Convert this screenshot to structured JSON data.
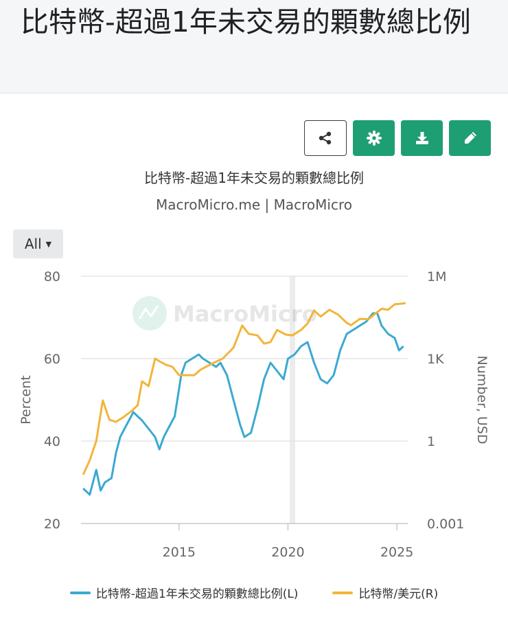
{
  "page": {
    "title": "比特幣-超過1年未交易的顆數總比例"
  },
  "toolbar": {
    "share": "share-icon",
    "settings": "gear-icon",
    "download": "download-icon",
    "edit": "pencil-icon"
  },
  "range": {
    "label": "All"
  },
  "watermark": "MacroMicro",
  "colors": {
    "accent": "#1e9e73",
    "series_left": "#3aa9d1",
    "series_right": "#f2b53a"
  },
  "chart_data": {
    "type": "line",
    "title": "比特幣-超過1年未交易的顆數總比例",
    "subtitle": "MacroMicro.me | MacroMicro",
    "x_ticks": [
      2015,
      2020,
      2025
    ],
    "xlim": [
      2010.5,
      2025.5
    ],
    "y_left": {
      "label": "Percent",
      "lim": [
        20,
        80
      ],
      "ticks": [
        20,
        40,
        60,
        80
      ]
    },
    "y_right": {
      "label": "Number, USD",
      "scale": "log",
      "ticks": [
        {
          "value": 0.001,
          "label": "0.001"
        },
        {
          "value": 1,
          "label": "1"
        },
        {
          "value": 1000,
          "label": "1K"
        },
        {
          "value": 1000000,
          "label": "1M"
        }
      ]
    },
    "series": [
      {
        "name": "比特幣-超過1年未交易的顆數總比例(L)",
        "axis": "left",
        "x": [
          2010.6,
          2010.9,
          2011.2,
          2011.4,
          2011.6,
          2011.9,
          2012.1,
          2012.3,
          2012.6,
          2012.9,
          2013.1,
          2013.3,
          2013.6,
          2013.9,
          2014.1,
          2014.3,
          2014.5,
          2014.8,
          2015.1,
          2015.3,
          2015.6,
          2015.9,
          2016.1,
          2016.4,
          2016.7,
          2016.9,
          2017.2,
          2017.5,
          2017.8,
          2018.0,
          2018.3,
          2018.6,
          2018.9,
          2019.2,
          2019.5,
          2019.8,
          2020.0,
          2020.3,
          2020.6,
          2020.9,
          2021.2,
          2021.5,
          2021.8,
          2022.1,
          2022.4,
          2022.7,
          2023.0,
          2023.3,
          2023.6,
          2023.9,
          2024.1,
          2024.3,
          2024.6,
          2024.9,
          2025.1,
          2025.3
        ],
        "values": [
          28.5,
          27,
          33,
          28,
          30,
          31,
          37,
          41,
          44,
          47,
          46,
          45,
          43,
          41,
          38,
          41,
          43,
          46,
          56,
          59,
          60,
          61,
          60,
          59,
          58,
          59,
          56,
          50,
          44,
          41,
          42,
          48,
          55,
          59,
          57,
          55,
          60,
          61,
          63,
          64,
          59,
          55,
          54,
          56,
          62,
          66,
          67,
          68,
          69,
          71,
          71,
          68,
          66,
          65,
          62,
          63
        ]
      },
      {
        "name": "比特幣/美元(R)",
        "axis": "right",
        "x": [
          2010.6,
          2010.9,
          2011.2,
          2011.5,
          2011.8,
          2012.1,
          2012.4,
          2012.8,
          2013.1,
          2013.3,
          2013.6,
          2013.9,
          2014.1,
          2014.4,
          2014.7,
          2015.0,
          2015.3,
          2015.7,
          2016.0,
          2016.5,
          2017.0,
          2017.5,
          2017.9,
          2018.2,
          2018.6,
          2018.9,
          2019.2,
          2019.5,
          2019.9,
          2020.2,
          2020.6,
          2020.9,
          2021.2,
          2021.5,
          2021.9,
          2022.3,
          2022.7,
          2022.9,
          2023.3,
          2023.7,
          2024.0,
          2024.3,
          2024.6,
          2024.9,
          2025.2,
          2025.4
        ],
        "values": [
          0.06,
          0.2,
          1,
          30,
          6,
          5,
          7,
          12,
          20,
          150,
          100,
          1000,
          800,
          600,
          500,
          250,
          250,
          250,
          400,
          650,
          1000,
          2500,
          16000,
          8000,
          7000,
          3500,
          4000,
          11000,
          7500,
          7000,
          11000,
          19000,
          57000,
          34000,
          60000,
          40000,
          20000,
          16500,
          28000,
          27000,
          43000,
          65000,
          60000,
          95000,
          100000,
          105000
        ]
      }
    ]
  }
}
